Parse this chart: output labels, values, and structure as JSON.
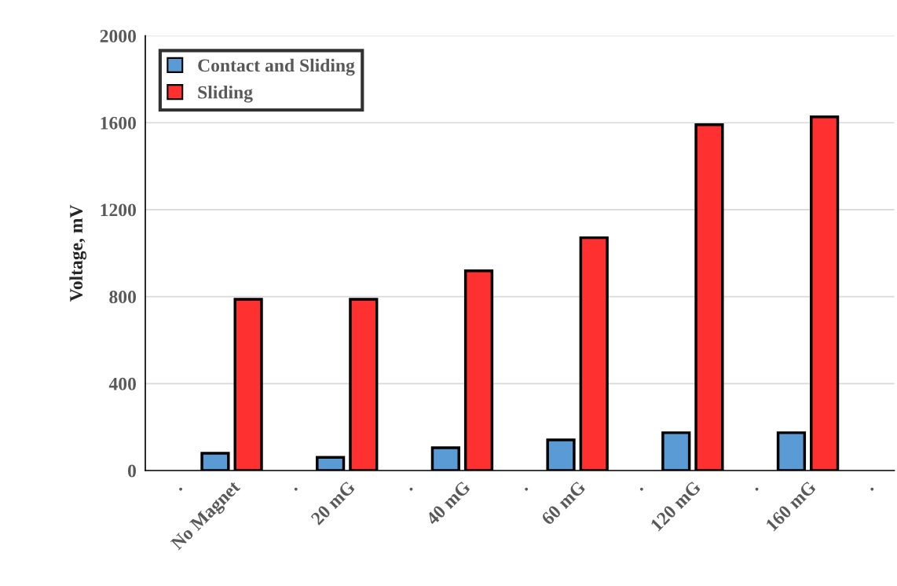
{
  "chart_data": {
    "type": "bar",
    "ylabel": "Voltage, mV",
    "categories": [
      ".",
      "No Magnet",
      ".",
      "20 mG",
      ".",
      "40 mG",
      ".",
      "60 mG",
      ".",
      "120 mG",
      ".",
      "160 mG",
      "."
    ],
    "series": [
      {
        "name": "Contact and Sliding",
        "color": "#5b9bd5",
        "values": [
          null,
          80,
          null,
          61,
          null,
          105,
          null,
          141,
          null,
          174,
          null,
          174,
          null
        ]
      },
      {
        "name": "Sliding",
        "color": "#ff3030",
        "values": [
          null,
          788,
          null,
          788,
          null,
          919,
          null,
          1071,
          null,
          1591,
          null,
          1627,
          null
        ]
      }
    ],
    "ylim": [
      0,
      2000
    ],
    "yticks": [
      0,
      400,
      800,
      1200,
      1600,
      2000
    ],
    "grid": "y",
    "legend": "top left"
  }
}
